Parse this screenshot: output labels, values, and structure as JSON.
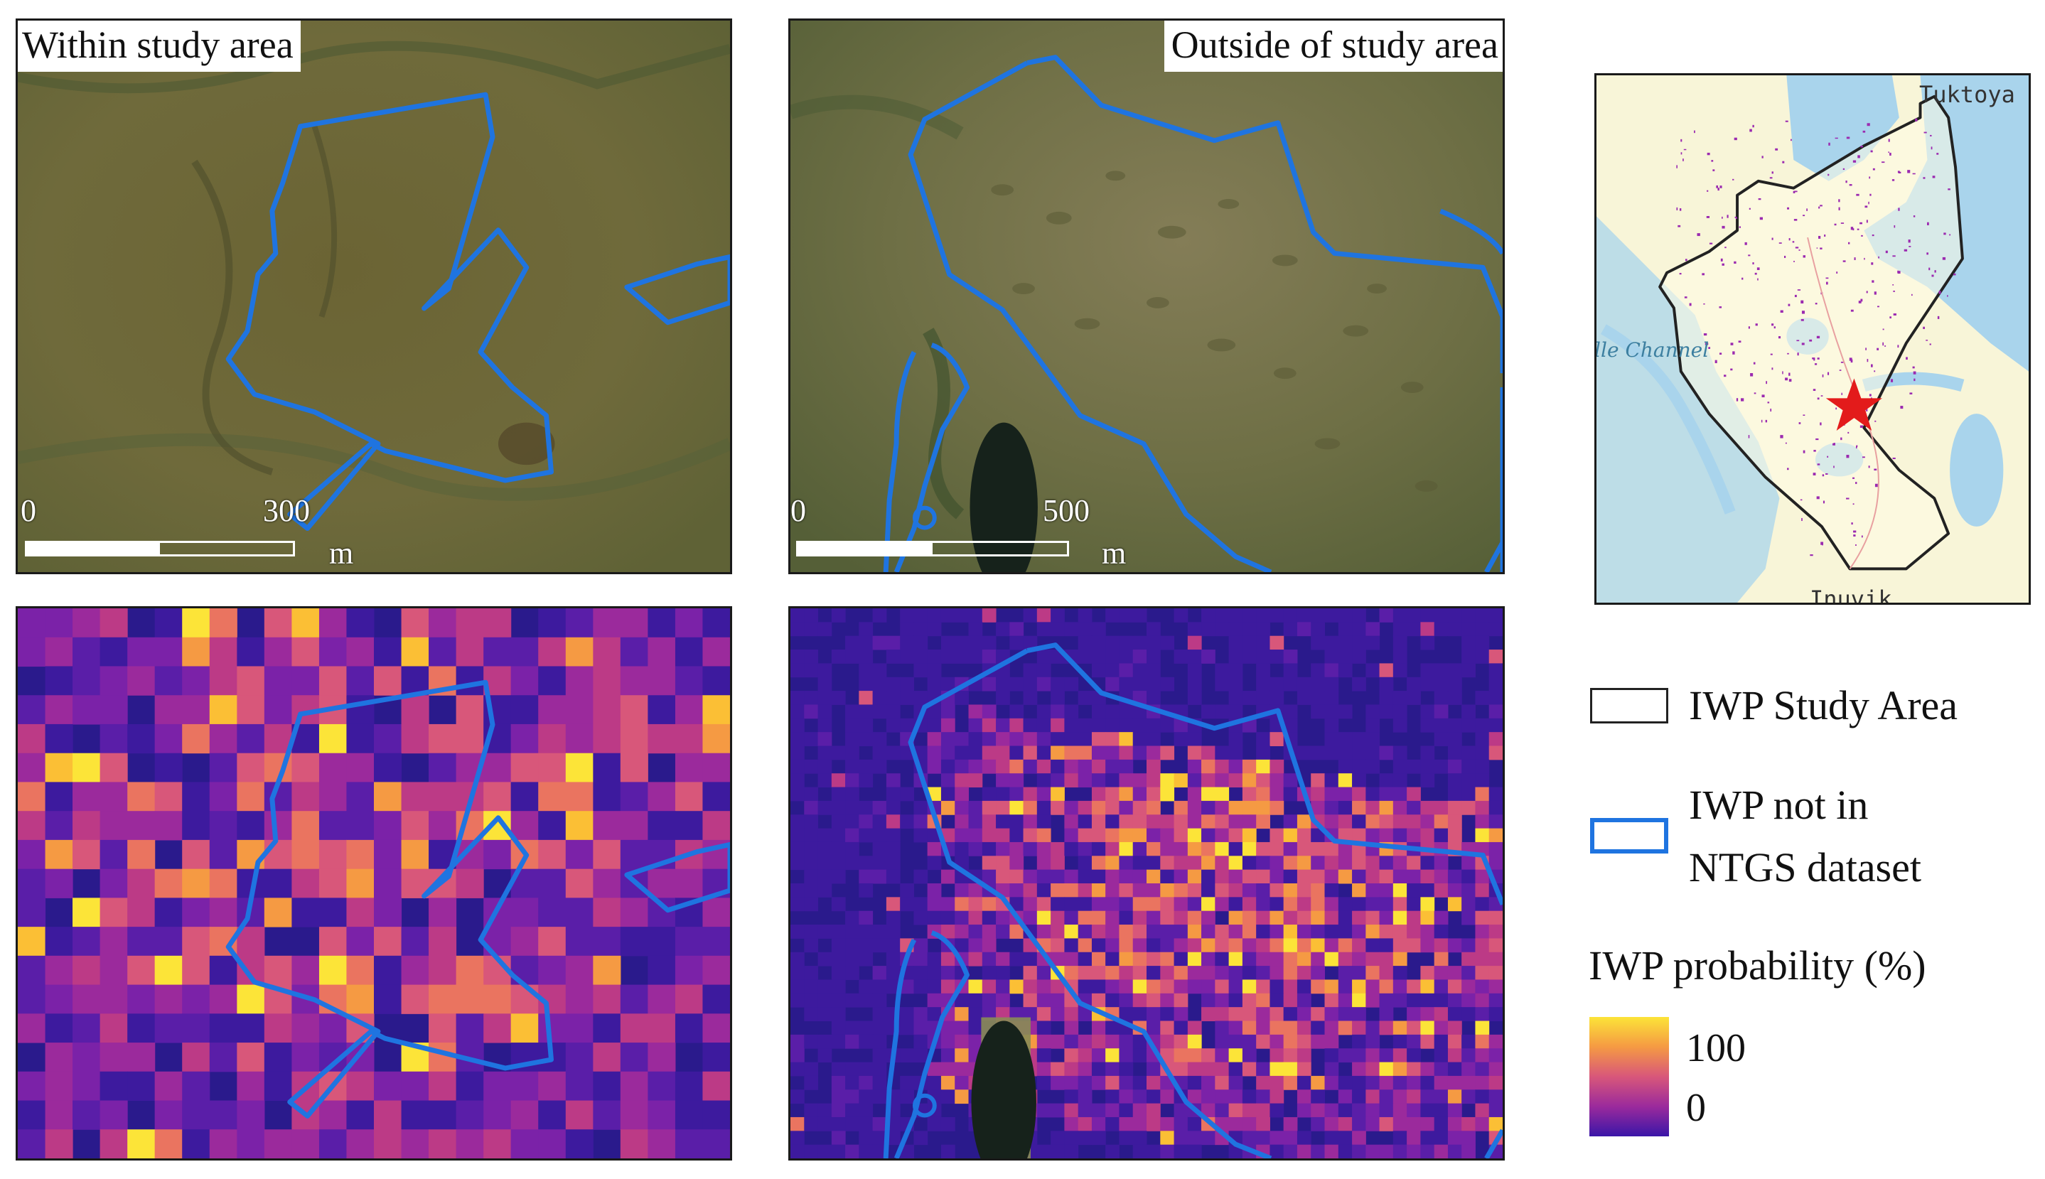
{
  "panels": {
    "top_left": {
      "title": "Within study area",
      "scale": {
        "start": "0",
        "end": "300",
        "unit": "m"
      }
    },
    "top_right": {
      "title": "Outside of study area",
      "scale": {
        "start": "0",
        "end": "500",
        "unit": "m"
      }
    }
  },
  "inset_map": {
    "towns": [
      "Tuktoya",
      "Inuvik"
    ],
    "channel": "Ille Channel"
  },
  "legend": {
    "study_area": "IWP Study Area",
    "not_in_ntgs_line1": "IWP not in",
    "not_in_ntgs_line2": "NTGS dataset",
    "probability_title": "IWP probability (%)",
    "max": "100",
    "min": "0"
  },
  "colors": {
    "outline_blue": "#1f74e0",
    "study_area_border": "#222222",
    "heat_low": "#2a1a8c",
    "heat_high": "#fce438",
    "star": "#e31b1b",
    "water": "#a9d4ec",
    "land": "#f8f5d8"
  }
}
